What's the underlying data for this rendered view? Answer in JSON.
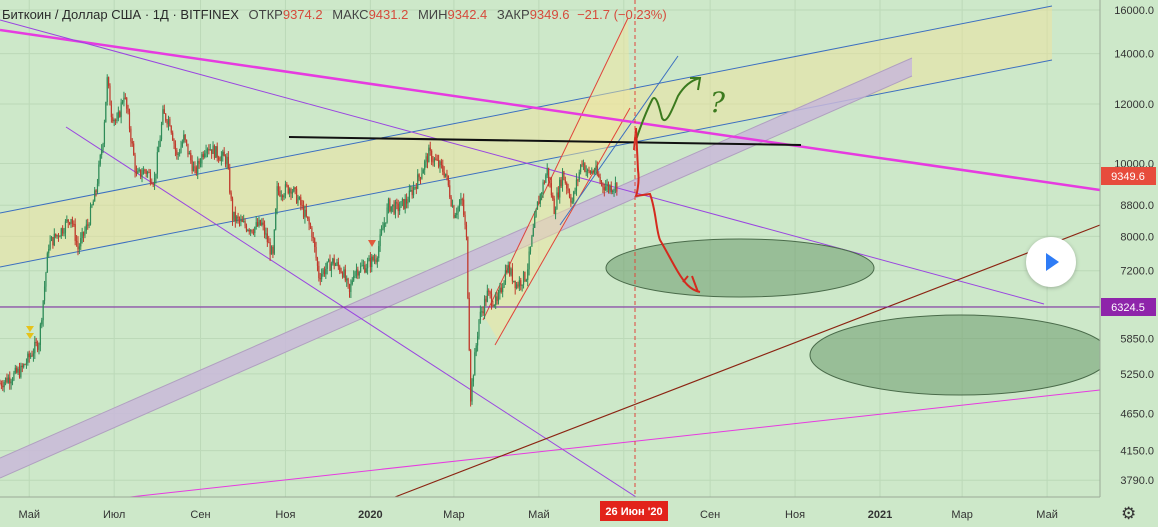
{
  "header": {
    "symbol": "Биткоин / Доллар США",
    "interval": "1Д",
    "exchange": "BITFINEX",
    "open_label": "ОТКР",
    "open_value": "9374.2",
    "high_label": "МАКС",
    "high_value": "9431.2",
    "low_label": "МИН",
    "low_value": "9342.4",
    "close_label": "ЗАКР",
    "close_value": "9349.6",
    "change": "−21.7 (−0.23%)"
  },
  "chart_data": {
    "type": "candlestick",
    "y_scale": "log",
    "ylim": [
      3600,
      16500
    ],
    "y_ticks": [
      "16000.0",
      "14000.0",
      "12000.0",
      "10000.0",
      "8800.0",
      "8000.0",
      "7200.0",
      "6450.0",
      "5850.0",
      "5250.0",
      "4650.0",
      "4150.0",
      "3790.0"
    ],
    "x_ticks": [
      "Май",
      "Июл",
      "Сен",
      "Ноя",
      "2020",
      "Мар",
      "Май",
      "Июл",
      "Сен",
      "Ноя",
      "2021",
      "Мар",
      "Май"
    ],
    "x_range": [
      "2019-04-10",
      "2021-06-08"
    ],
    "bold_x_ticks": [
      "2020",
      "2021"
    ],
    "price_badge": {
      "value": "9349.6",
      "color": "#e74c3c"
    },
    "level_badge": {
      "value": "6324.5",
      "color": "#8e24aa"
    },
    "crosshair_date_label": "26 Июн '20",
    "annotation_text": "?",
    "price_path": [
      [
        "2019-04-10",
        5100
      ],
      [
        "2019-04-25",
        5300
      ],
      [
        "2019-05-08",
        5800
      ],
      [
        "2019-05-15",
        7800
      ],
      [
        "2019-05-25",
        8200
      ],
      [
        "2019-05-31",
        8500
      ],
      [
        "2019-06-05",
        7700
      ],
      [
        "2019-06-12",
        8300
      ],
      [
        "2019-06-18",
        9200
      ],
      [
        "2019-06-23",
        10800
      ],
      [
        "2019-06-26",
        12900
      ],
      [
        "2019-06-29",
        11700
      ],
      [
        "2019-07-03",
        11300
      ],
      [
        "2019-07-08",
        12400
      ],
      [
        "2019-07-12",
        11200
      ],
      [
        "2019-07-17",
        9600
      ],
      [
        "2019-07-23",
        9800
      ],
      [
        "2019-07-30",
        9500
      ],
      [
        "2019-08-05",
        11600
      ],
      [
        "2019-08-10",
        11400
      ],
      [
        "2019-08-15",
        10200
      ],
      [
        "2019-08-20",
        10800
      ],
      [
        "2019-08-28",
        9700
      ],
      [
        "2019-09-05",
        10600
      ],
      [
        "2019-09-13",
        10300
      ],
      [
        "2019-09-20",
        10100
      ],
      [
        "2019-09-24",
        8500
      ],
      [
        "2019-10-01",
        8300
      ],
      [
        "2019-10-08",
        8200
      ],
      [
        "2019-10-15",
        8300
      ],
      [
        "2019-10-23",
        7500
      ],
      [
        "2019-10-26",
        9200
      ],
      [
        "2019-10-30",
        9200
      ],
      [
        "2019-11-05",
        9300
      ],
      [
        "2019-11-12",
        8800
      ],
      [
        "2019-11-20",
        8100
      ],
      [
        "2019-11-25",
        7100
      ],
      [
        "2019-12-05",
        7400
      ],
      [
        "2019-12-12",
        7200
      ],
      [
        "2019-12-17",
        6700
      ],
      [
        "2019-12-20",
        7200
      ],
      [
        "2019-12-28",
        7300
      ],
      [
        "2020-01-05",
        7500
      ],
      [
        "2020-01-14",
        8800
      ],
      [
        "2020-01-20",
        8700
      ],
      [
        "2020-01-27",
        8900
      ],
      [
        "2020-02-05",
        9600
      ],
      [
        "2020-02-12",
        10300
      ],
      [
        "2020-02-18",
        10000
      ],
      [
        "2020-02-24",
        9700
      ],
      [
        "2020-03-01",
        8600
      ],
      [
        "2020-03-07",
        8900
      ],
      [
        "2020-03-10",
        7900
      ],
      [
        "2020-03-13",
        4900
      ],
      [
        "2020-03-19",
        6200
      ],
      [
        "2020-03-25",
        6700
      ],
      [
        "2020-04-01",
        6500
      ],
      [
        "2020-04-08",
        7300
      ],
      [
        "2020-04-15",
        6900
      ],
      [
        "2020-04-22",
        7100
      ],
      [
        "2020-04-30",
        8800
      ],
      [
        "2020-05-07",
        9800
      ],
      [
        "2020-05-12",
        8700
      ],
      [
        "2020-05-18",
        9700
      ],
      [
        "2020-05-25",
        8900
      ],
      [
        "2020-06-01",
        10100
      ],
      [
        "2020-06-05",
        9700
      ],
      [
        "2020-06-10",
        9800
      ],
      [
        "2020-06-15",
        9400
      ],
      [
        "2020-06-20",
        9300
      ],
      [
        "2020-06-26",
        9350
      ]
    ]
  }
}
